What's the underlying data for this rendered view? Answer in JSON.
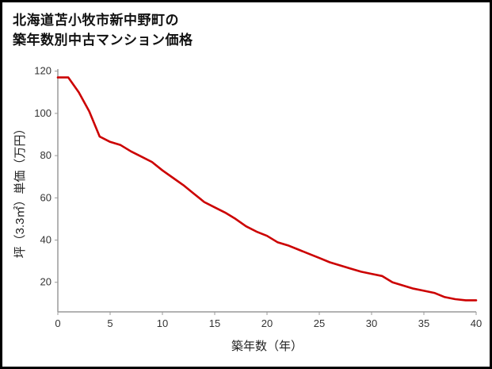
{
  "page": {
    "title_line1": "北海道苫小牧市新中野町の",
    "title_line2": "築年数別中古マンション価格"
  },
  "chart_data": {
    "type": "line",
    "title": "北海道苫小牧市新中野町の築年数別中古マンション価格",
    "xlabel": "築年数（年）",
    "ylabel": "坪（3.3㎡）単価（万円）",
    "x": [
      0,
      1,
      2,
      3,
      4,
      5,
      6,
      7,
      8,
      9,
      10,
      11,
      12,
      13,
      14,
      15,
      16,
      17,
      18,
      19,
      20,
      21,
      22,
      23,
      24,
      25,
      26,
      27,
      28,
      29,
      30,
      31,
      32,
      33,
      34,
      35,
      36,
      37,
      38,
      39,
      40
    ],
    "values": [
      117,
      117,
      110,
      101,
      89,
      86.5,
      85,
      82,
      79.5,
      77,
      73,
      69.5,
      66,
      62,
      58,
      55.5,
      53,
      50,
      46.5,
      44,
      42,
      39,
      37.5,
      35.5,
      33.5,
      31.5,
      29.5,
      28,
      26.5,
      25,
      24,
      23,
      20,
      18.5,
      17,
      16,
      15,
      13,
      12,
      11.5,
      11.5
    ],
    "series_name": "坪（3.3㎡）単価（万円）",
    "xlim": [
      0,
      40
    ],
    "ylim": [
      6,
      121
    ],
    "x_ticks": [
      0,
      5,
      10,
      15,
      20,
      25,
      30,
      35,
      40
    ],
    "y_ticks": [
      20,
      40,
      60,
      80,
      100,
      120
    ],
    "grid": false,
    "legend_position": "none",
    "line_color": "#cc0000",
    "axis_color": "#9a9a9a",
    "tick_text_color": "#333333"
  }
}
